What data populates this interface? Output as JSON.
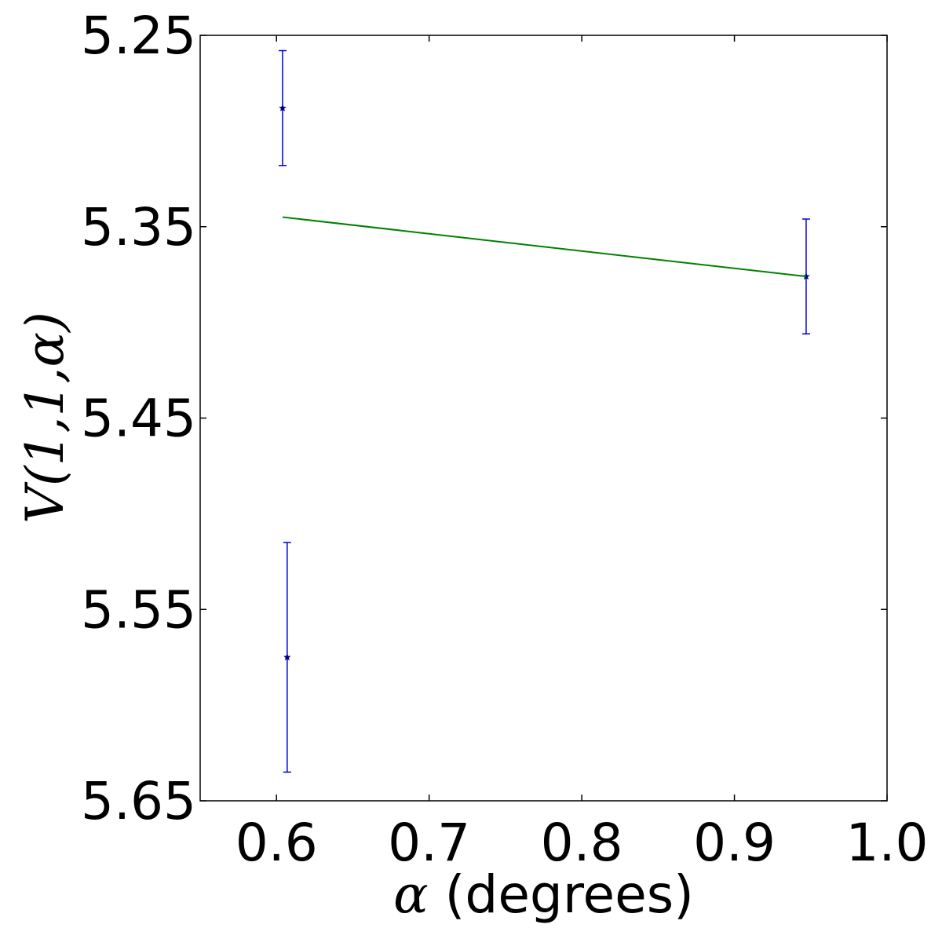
{
  "chart_data": {
    "type": "scatter",
    "title": "",
    "xlabel": "α (degrees)",
    "xlabel_symbol": "α",
    "xlabel_text": " (degrees)",
    "ylabel": "V(1,1,α)",
    "xlim": [
      0.55,
      1.0
    ],
    "ylim": [
      5.25,
      5.65
    ],
    "y_inverted": true,
    "grid": false,
    "x_ticks": [
      0.6,
      0.7,
      0.8,
      0.9,
      1.0
    ],
    "x_tick_labels": [
      "0.6",
      "0.7",
      "0.8",
      "0.9",
      "1.0"
    ],
    "y_ticks": [
      5.25,
      5.35,
      5.45,
      5.55,
      5.65
    ],
    "y_tick_labels": [
      "5.25",
      "5.35",
      "5.45",
      "5.55",
      "5.65"
    ],
    "series": [
      {
        "kind": "errorbar",
        "marker": "star",
        "color": "#0000cc",
        "marker_color": "#000080",
        "points": [
          {
            "x": 0.604,
            "y": 5.288,
            "yerr": 0.03
          },
          {
            "x": 0.607,
            "y": 5.575,
            "yerr": 0.06
          },
          {
            "x": 0.947,
            "y": 5.376,
            "yerr": 0.03
          }
        ]
      },
      {
        "kind": "line",
        "color": "#008000",
        "x": [
          0.604,
          0.947
        ],
        "y": [
          5.345,
          5.376
        ]
      }
    ]
  }
}
